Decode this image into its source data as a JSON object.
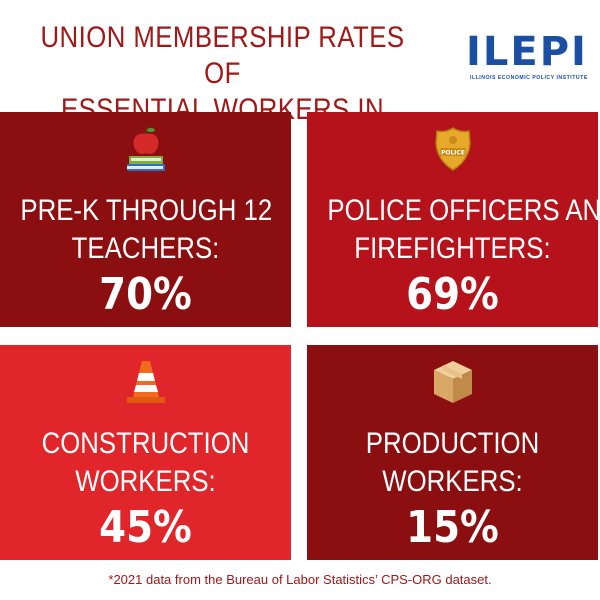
{
  "header": {
    "title_line1": "UNION MEMBERSHIP RATES OF",
    "title_line2": "ESSENTIAL WORKERS IN ILLINOIS"
  },
  "logo": {
    "wordmark": "ILEPI",
    "subtitle": "ILLINOIS ECONOMIC POLICY INSTITUTE"
  },
  "tiles": [
    {
      "line1": "PRE-K THROUGH 12",
      "line2": "TEACHERS:",
      "value": "70%",
      "icon": "apple-books-icon",
      "color": "#8b0f10"
    },
    {
      "line1": "POLICE OFFICERS AND",
      "line2": "FIREFIGHTERS:",
      "value": "69%",
      "icon": "police-badge-icon",
      "color": "#b5121b"
    },
    {
      "line1": "CONSTRUCTION",
      "line2": "WORKERS:",
      "value": "45%",
      "icon": "traffic-cone-icon",
      "color": "#e0262a"
    },
    {
      "line1": "PRODUCTION",
      "line2": "WORKERS:",
      "value": "15%",
      "icon": "cardboard-box-icon",
      "color": "#8b0f10"
    }
  ],
  "footnote": "*2021 data from the Bureau of Labor Statistics’ CPS-ORG dataset."
}
